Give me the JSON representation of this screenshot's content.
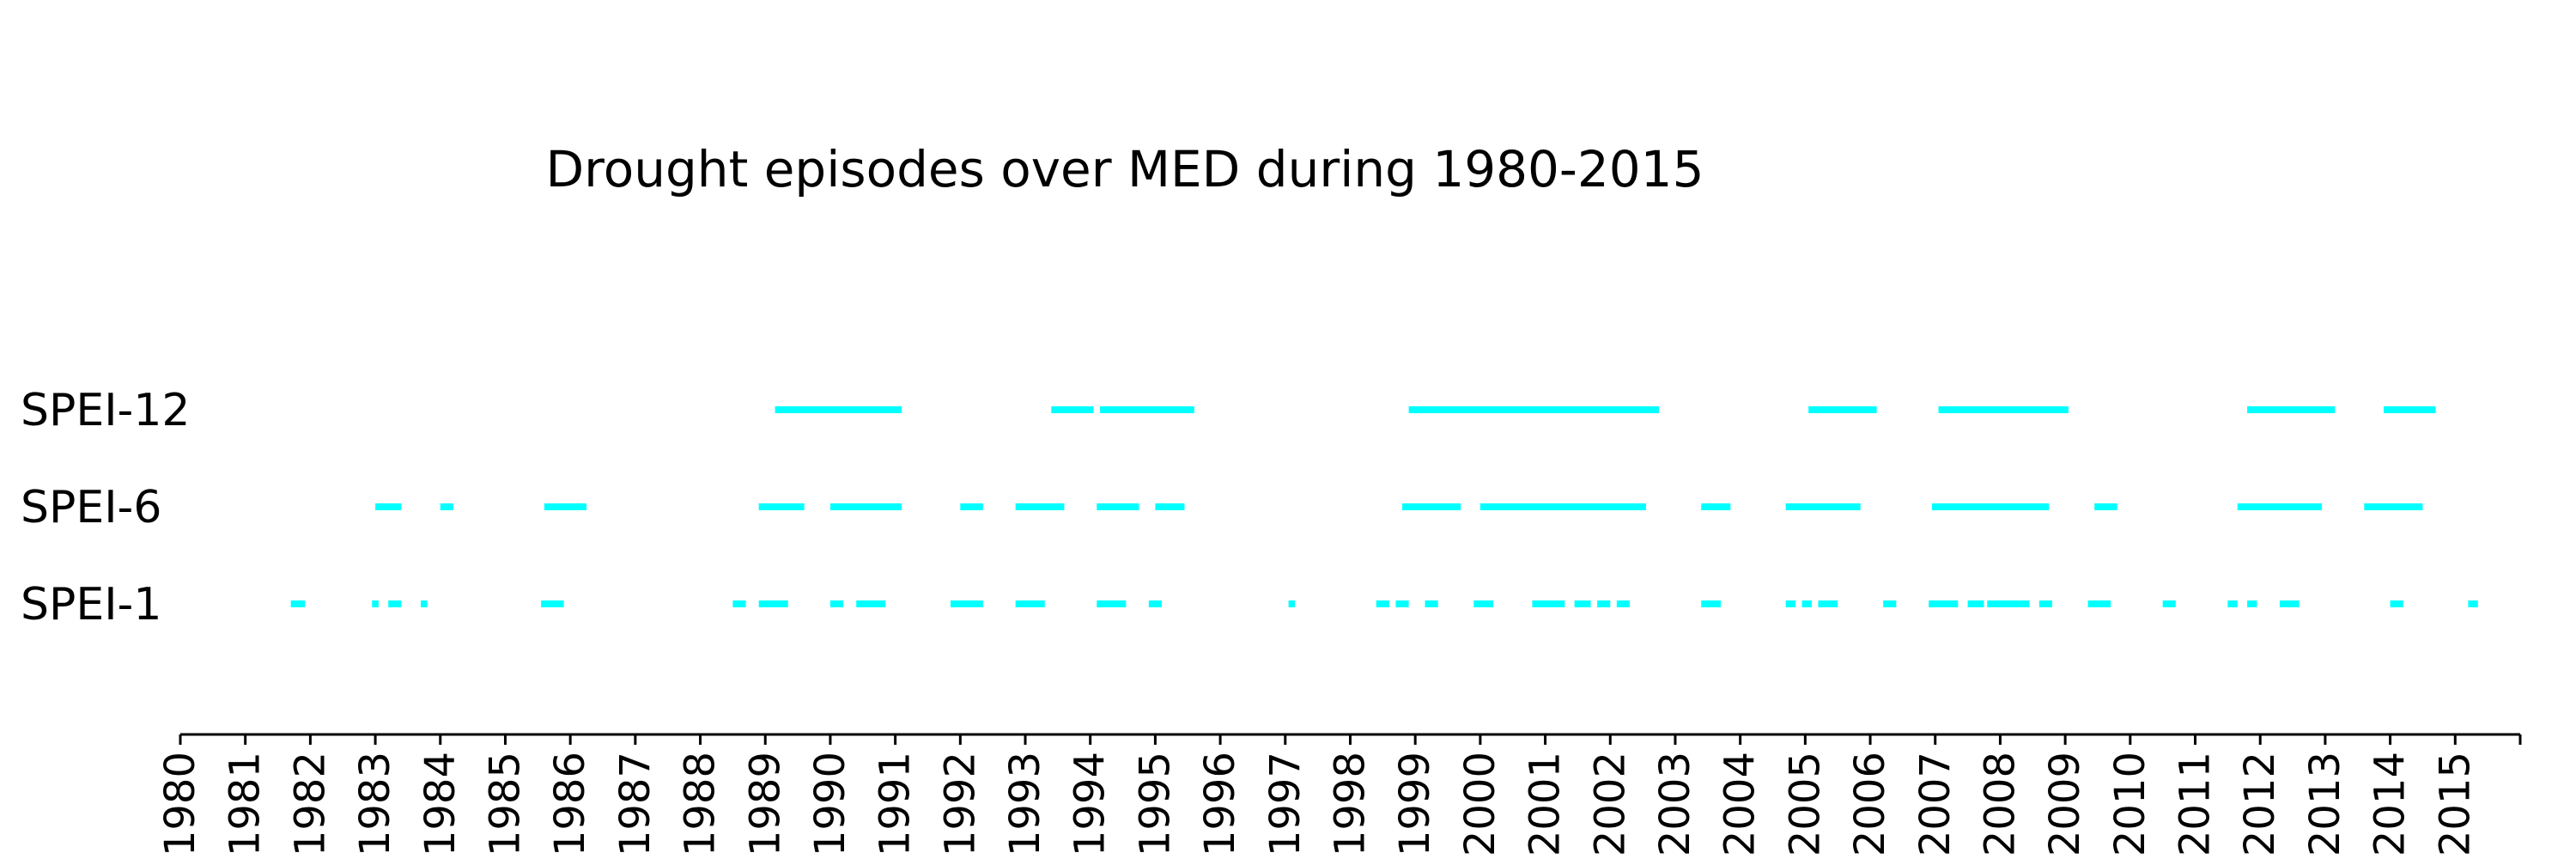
{
  "chart_data": {
    "type": "timeline",
    "title": "Drought episodes over MED during 1980-2015",
    "xlabel": "",
    "ylabel": "",
    "x_range": [
      1980,
      2016
    ],
    "x_ticks": [
      "1980",
      "1981",
      "1982",
      "1983",
      "1984",
      "1985",
      "1986",
      "1987",
      "1988",
      "1989",
      "1990",
      "1991",
      "1992",
      "1993",
      "1994",
      "1995",
      "1996",
      "1997",
      "1998",
      "1999",
      "2000",
      "2001",
      "2002",
      "2003",
      "2004",
      "2005",
      "2006",
      "2007",
      "2008",
      "2009",
      "2010",
      "2011",
      "2012",
      "2013",
      "2014",
      "2015"
    ],
    "grid": false,
    "color": "#00FFFF",
    "series": [
      {
        "name": "SPEI-12",
        "episodes": [
          [
            1989.15,
            1991.1
          ],
          [
            1993.4,
            1994.05
          ],
          [
            1994.15,
            1995.6
          ],
          [
            1998.9,
            2002.75
          ],
          [
            2005.05,
            2006.1
          ],
          [
            2007.05,
            2009.05
          ],
          [
            2011.8,
            2013.15
          ],
          [
            2013.9,
            2014.7
          ]
        ]
      },
      {
        "name": "SPEI-6",
        "episodes": [
          [
            1983.0,
            1983.4
          ],
          [
            1984.0,
            1984.2
          ],
          [
            1985.6,
            1986.25
          ],
          [
            1988.9,
            1989.6
          ],
          [
            1990.0,
            1991.1
          ],
          [
            1992.0,
            1992.35
          ],
          [
            1992.85,
            1993.6
          ],
          [
            1994.1,
            1994.75
          ],
          [
            1995.0,
            1995.45
          ],
          [
            1998.8,
            1999.7
          ],
          [
            2000.0,
            2002.55
          ],
          [
            2003.4,
            2003.85
          ],
          [
            2004.7,
            2005.85
          ],
          [
            2006.95,
            2008.75
          ],
          [
            2009.45,
            2009.8
          ],
          [
            2011.65,
            2012.95
          ],
          [
            2013.6,
            2014.5
          ]
        ]
      },
      {
        "name": "SPEI-1",
        "episodes": [
          [
            1981.7,
            1981.92
          ],
          [
            1982.95,
            1983.05
          ],
          [
            1983.2,
            1983.4
          ],
          [
            1983.7,
            1983.8
          ],
          [
            1985.55,
            1985.9
          ],
          [
            1988.5,
            1988.7
          ],
          [
            1988.9,
            1989.35
          ],
          [
            1990.0,
            1990.2
          ],
          [
            1990.4,
            1990.85
          ],
          [
            1991.85,
            1992.35
          ],
          [
            1992.85,
            1993.3
          ],
          [
            1994.1,
            1994.55
          ],
          [
            1994.9,
            1995.1
          ],
          [
            1997.05,
            1997.15
          ],
          [
            1998.4,
            1998.6
          ],
          [
            1998.7,
            1998.9
          ],
          [
            1999.15,
            1999.35
          ],
          [
            1999.9,
            2000.2
          ],
          [
            2000.8,
            2001.3
          ],
          [
            2001.45,
            2001.7
          ],
          [
            2001.8,
            2002.0
          ],
          [
            2002.1,
            2002.3
          ],
          [
            2003.4,
            2003.7
          ],
          [
            2004.7,
            2004.85
          ],
          [
            2004.95,
            2005.1
          ],
          [
            2005.2,
            2005.5
          ],
          [
            2006.2,
            2006.4
          ],
          [
            2006.9,
            2007.35
          ],
          [
            2007.5,
            2007.75
          ],
          [
            2007.8,
            2008.45
          ],
          [
            2008.6,
            2008.8
          ],
          [
            2009.35,
            2009.7
          ],
          [
            2010.5,
            2010.7
          ],
          [
            2011.5,
            2011.65
          ],
          [
            2011.8,
            2011.95
          ],
          [
            2012.3,
            2012.6
          ],
          [
            2014.0,
            2014.2
          ],
          [
            2015.2,
            2015.35
          ]
        ]
      }
    ]
  }
}
